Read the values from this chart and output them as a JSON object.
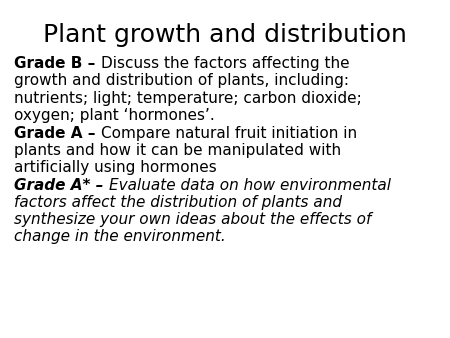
{
  "title": "Plant growth and distribution",
  "background_color": "#ffffff",
  "title_fontsize": 18,
  "body_fontsize": 11,
  "paragraphs": [
    {
      "label": "Grade B",
      "label_bold": true,
      "label_italic": false,
      "sep": " – ",
      "lines": [
        {
          "text": "Discuss the factors affecting the",
          "first": true
        },
        {
          "text": "growth and distribution of plants, including:",
          "first": false
        }
      ],
      "body_italic": false
    },
    {
      "label": "",
      "label_bold": false,
      "label_italic": false,
      "sep": "",
      "lines": [
        {
          "text": "nutrients; light; temperature; carbon dioxide;",
          "first": true
        },
        {
          "text": "oxygen; plant ‘hormones’.",
          "first": false
        }
      ],
      "body_italic": false
    },
    {
      "label": "Grade A",
      "label_bold": true,
      "label_italic": false,
      "sep": " – ",
      "lines": [
        {
          "text": "Compare natural fruit initiation in",
          "first": true
        },
        {
          "text": "plants and how it can be manipulated with",
          "first": false
        },
        {
          "text": "artificially using hormones",
          "first": false
        }
      ],
      "body_italic": false
    },
    {
      "label": "Grade A*",
      "label_bold": true,
      "label_italic": true,
      "sep": " – ",
      "lines": [
        {
          "text": "Evaluate data on how environmental",
          "first": true
        },
        {
          "text": "factors affect the distribution of plants and",
          "first": false
        },
        {
          "text": "synthesize your own ideas about the effects of",
          "first": false
        },
        {
          "text": "change in the environment.",
          "first": false
        }
      ],
      "body_italic": true
    }
  ]
}
